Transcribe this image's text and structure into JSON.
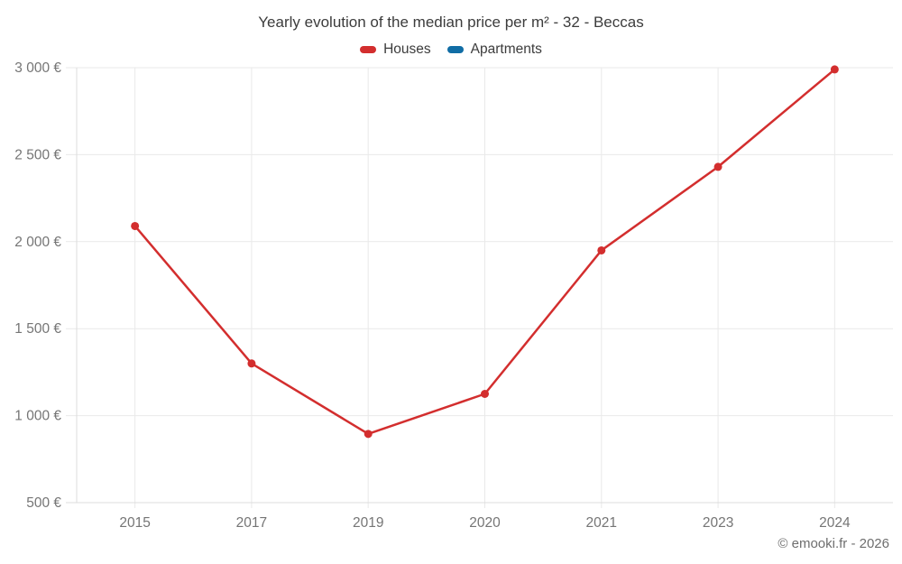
{
  "title": "Yearly evolution of the median price per m² - 32 - Beccas",
  "legend": {
    "items": [
      {
        "label": "Houses",
        "color": "#d32e2e"
      },
      {
        "label": "Apartments",
        "color": "#116da5"
      }
    ]
  },
  "footer": {
    "credit": "© emooki.fr - 2026"
  },
  "chart_data": {
    "type": "line",
    "title": "Yearly evolution of the median price per m² - 32 - Beccas",
    "categories": [
      "2015",
      "2017",
      "2019",
      "2020",
      "2021",
      "2023",
      "2024"
    ],
    "series": [
      {
        "name": "Houses",
        "color": "#d32e2e",
        "values": [
          2090,
          1300,
          895,
          1125,
          1950,
          2430,
          2990
        ]
      },
      {
        "name": "Apartments",
        "color": "#116da5",
        "values": []
      }
    ],
    "xlabel": "",
    "ylabel": "",
    "ylim": [
      500,
      3000
    ],
    "yticks": [
      {
        "value": 500,
        "label": "500 €"
      },
      {
        "value": 1000,
        "label": "1 000 €"
      },
      {
        "value": 1500,
        "label": "1 500 €"
      },
      {
        "value": 2000,
        "label": "2 000 €"
      },
      {
        "value": 2500,
        "label": "2 500 €"
      },
      {
        "value": 3000,
        "label": "3 000 €"
      }
    ],
    "grid": true,
    "legend_position": "top",
    "currency_suffix": "€"
  }
}
